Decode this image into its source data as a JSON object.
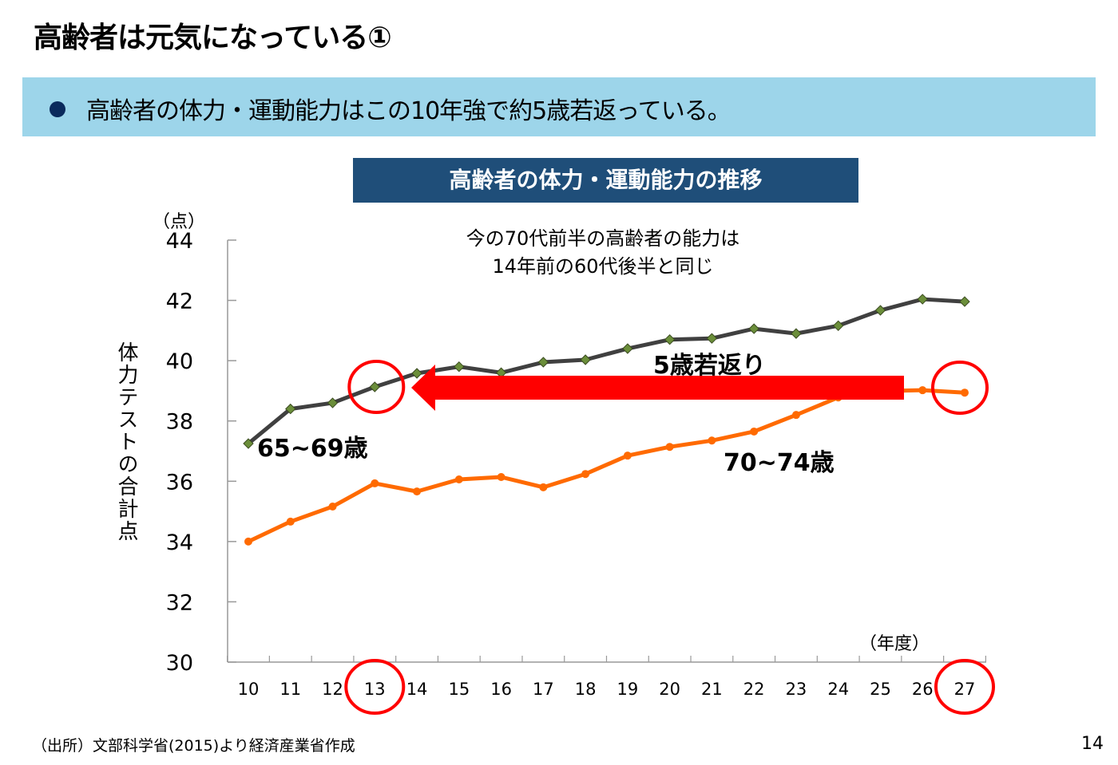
{
  "slide": {
    "title": "高齢者は元気になっている①",
    "bullet_text": "高齢者の体力・運動能力はこの10年強で約5歳若返っている。",
    "source": "（出所）文部科学省(2015)より経済産業省作成",
    "page_number": "14"
  },
  "chart_data": {
    "type": "line",
    "title": "高齢者の体力・運動能力の推移",
    "ylabel": "体力テストの合計点",
    "yunit": "（点）",
    "xunit": "（年度）",
    "categories": [
      "10",
      "11",
      "12",
      "13",
      "14",
      "15",
      "16",
      "17",
      "18",
      "19",
      "20",
      "21",
      "22",
      "23",
      "24",
      "25",
      "26",
      "27"
    ],
    "ylim": [
      30,
      44
    ],
    "yticks": [
      "30",
      "32",
      "34",
      "36",
      "38",
      "40",
      "42",
      "44"
    ],
    "grid": false,
    "series": [
      {
        "name": "65~69歳",
        "color": "#404040",
        "marker": "diamond",
        "marker_color": "#6b8e3a",
        "values": [
          37.25,
          38.4,
          38.6,
          39.13,
          39.58,
          39.8,
          39.6,
          39.95,
          40.03,
          40.4,
          40.7,
          40.74,
          41.06,
          40.9,
          41.16,
          41.67,
          42.04,
          41.96
        ]
      },
      {
        "name": "70~74歳",
        "color": "#ff6a00",
        "marker": "circle",
        "marker_color": "#ff6a00",
        "values": [
          34.0,
          34.66,
          35.16,
          35.93,
          35.66,
          36.06,
          36.14,
          35.8,
          36.24,
          36.85,
          37.14,
          37.35,
          37.65,
          38.2,
          38.78,
          38.99,
          39.02,
          38.94
        ]
      }
    ],
    "annotations": {
      "note_line1": "今の70代前半の高齢者の能力は",
      "note_line2": "14年前の60代後半と同じ",
      "arrow_label": "5歳若返り",
      "arrow_color": "#ff0000",
      "highlight_categories": [
        "13",
        "27"
      ]
    }
  }
}
